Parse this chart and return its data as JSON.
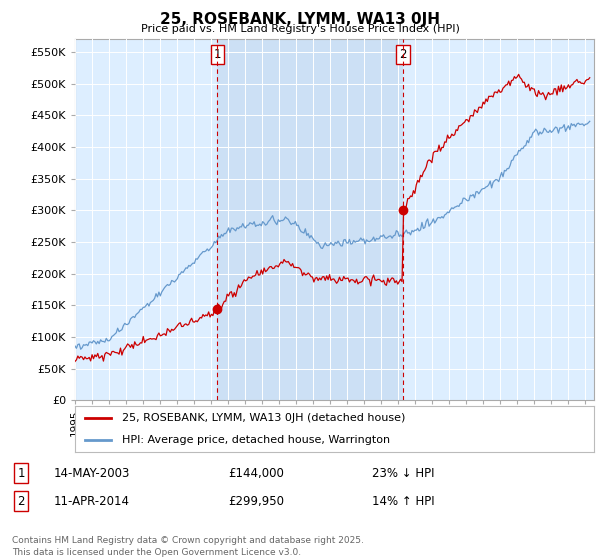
{
  "title": "25, ROSEBANK, LYMM, WA13 0JH",
  "subtitle": "Price paid vs. HM Land Registry's House Price Index (HPI)",
  "ylabel_ticks": [
    "£0",
    "£50K",
    "£100K",
    "£150K",
    "£200K",
    "£250K",
    "£300K",
    "£350K",
    "£400K",
    "£450K",
    "£500K",
    "£550K"
  ],
  "ytick_values": [
    0,
    50000,
    100000,
    150000,
    200000,
    250000,
    300000,
    350000,
    400000,
    450000,
    500000,
    550000
  ],
  "ylim": [
    0,
    570000
  ],
  "xlim_start": 1995.0,
  "xlim_end": 2025.5,
  "sale1_x": 2003.37,
  "sale1_y": 144000,
  "sale2_x": 2014.27,
  "sale2_y": 299950,
  "legend_line1": "25, ROSEBANK, LYMM, WA13 0JH (detached house)",
  "legend_line2": "HPI: Average price, detached house, Warrington",
  "footer": "Contains HM Land Registry data © Crown copyright and database right 2025.\nThis data is licensed under the Open Government Licence v3.0.",
  "line_color_red": "#cc0000",
  "line_color_blue": "#6699cc",
  "background_color": "#ddeeff",
  "shade_color": "#cce0f5",
  "plot_bg": "#ffffff",
  "vline_color": "#cc0000",
  "marker_color_red": "#cc0000"
}
